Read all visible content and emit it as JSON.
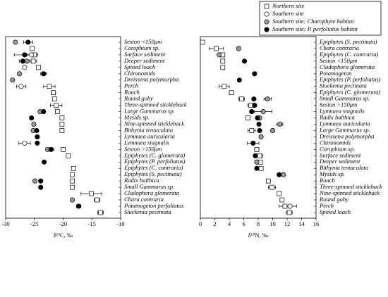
{
  "chart_data": [
    {
      "type": "dot",
      "xlabel": "δ¹³C, ‰",
      "xlim": [
        -30,
        -10
      ],
      "xticks": [
        -30,
        -25,
        -20,
        -15,
        -10
      ],
      "categories": [
        "Seston <150μm",
        "Corophium sp.",
        "Surface sediment",
        "Deeper sediment",
        "Spined loach",
        "Chironomids",
        "Dreissena polymorpha",
        "Perch",
        "Roach",
        "Round goby",
        "Three-spinned stickleback",
        "Large Gammarus sp.",
        "Mysids sp.",
        "Nine-spinned stickleback",
        "Bithynia tentaculata",
        "Lymnaea auricularia",
        "Lymnaea stagnalis",
        "Seston >150μm",
        "Epiphytes (C. glomerata)",
        "Epiphytes (P. perfoliatus)",
        "Epiphytes (C. contraria)",
        "Epiphytes (S. pectinata)",
        "Radix balthica",
        "Small Gammarus sp.",
        "Cladophora glomerata",
        "Chara contraria",
        "Potamogeton perfoliatus",
        "Stuckenia pectinata"
      ],
      "series": [
        {
          "name": "Northern site",
          "marker": "square",
          "color": "#ffffff",
          "values": [
            null,
            -25.4,
            -25.0,
            -25.2,
            -24.3,
            null,
            null,
            -22.4,
            -21.7,
            -21.5,
            -21.2,
            -21.0,
            -20.2,
            -20.2,
            -20.2,
            null,
            null,
            -20.0,
            -19.1,
            null,
            -18.2,
            -18.4,
            -18.4,
            -18.4,
            -15.1,
            -14.1,
            null,
            -13.5
          ],
          "errors": [
            null,
            null,
            0.6,
            0.6,
            null,
            null,
            null,
            1.0,
            0.4,
            null,
            1.0,
            null,
            null,
            null,
            null,
            null,
            null,
            null,
            null,
            null,
            null,
            null,
            null,
            null,
            1.8,
            0.5,
            null,
            0.5
          ]
        },
        {
          "name": "Southern site",
          "marker": "circle",
          "color": "#ffffff",
          "values": [
            null,
            null,
            -25.5,
            null,
            -26.7,
            null,
            null,
            -27.3,
            null,
            null,
            null,
            null,
            null,
            null,
            null,
            null,
            -26.7,
            null,
            null,
            null,
            null,
            null,
            null,
            null,
            null,
            null,
            null,
            null
          ],
          "errors": [
            null,
            null,
            0.6,
            null,
            null,
            null,
            null,
            0.8,
            null,
            null,
            null,
            null,
            null,
            null,
            null,
            null,
            1.0,
            null,
            null,
            null,
            null,
            null,
            null,
            null,
            null,
            null,
            null,
            null
          ]
        },
        {
          "name": "Southern site: Charophyte habitat",
          "marker": "circle",
          "color": "#999999",
          "values": [
            -28.3,
            null,
            null,
            -26.3,
            null,
            -27.6,
            -28.8,
            null,
            null,
            null,
            null,
            -24.0,
            null,
            -25.1,
            -25.2,
            null,
            null,
            -22.7,
            null,
            null,
            null,
            null,
            -24.9,
            null,
            null,
            -18.4,
            null,
            null
          ],
          "errors": [
            null,
            null,
            null,
            null,
            null,
            null,
            null,
            null,
            null,
            null,
            null,
            null,
            null,
            null,
            null,
            null,
            null,
            null,
            null,
            null,
            null,
            null,
            null,
            null,
            null,
            null,
            null,
            null
          ]
        },
        {
          "name": "Southern site: P. perfoliatus habitat",
          "marker": "circle",
          "color": "#000000",
          "values": [
            -26.1,
            null,
            -26.7,
            -27.0,
            null,
            -23.4,
            null,
            null,
            null,
            null,
            null,
            -23.4,
            -25.5,
            null,
            -24.6,
            -24.5,
            -24.5,
            -22.1,
            null,
            -23.3,
            null,
            null,
            -23.9,
            -23.9,
            null,
            null,
            -17.3,
            null
          ],
          "errors": [
            0.8,
            null,
            1.8,
            0.6,
            null,
            0.5,
            null,
            null,
            null,
            null,
            null,
            null,
            null,
            null,
            null,
            null,
            null,
            0.5,
            null,
            null,
            null,
            null,
            null,
            null,
            null,
            null,
            0.4,
            null
          ]
        }
      ]
    },
    {
      "type": "dot",
      "xlabel": "δ¹⁵N, ‰",
      "xlim": [
        0,
        16
      ],
      "xticks": [
        0,
        2,
        4,
        6,
        8,
        10,
        12,
        14,
        16
      ],
      "categories": [
        "Epiphytes (S. pectinata)",
        "Chara contraria",
        "Epiphytes (C. contraria)",
        "Seston <150μm",
        "Cladophora glomerata",
        "Potamogeton",
        "Epiphytes (P. perfoliatus)",
        "Stuckenia pectinata",
        "Epiphytes (C. glomerata)",
        "Small Gammarus sp.",
        "Seston >150μm",
        "Lymnaea stagnalis",
        "Radix balthica",
        "Lymnaea auricularia",
        "Large Gammarus sp.",
        "Dreissena polymorpha",
        "Chironomids",
        "Corophium sp.",
        "Surface sediment",
        "Deeper sediment",
        "Bithynia tentaculata",
        "Mysids sp.",
        "Roach",
        "Three-spinned stickleback",
        "Nine-spinned stickleback",
        "Round goby",
        "Perch",
        "Spined loach"
      ],
      "series": [
        {
          "name": "Northern site",
          "marker": "square",
          "color": "#ffffff",
          "values": [
            0.3,
            2.2,
            3.1,
            3.1,
            3.1,
            null,
            null,
            3.3,
            4.3,
            5.7,
            7.0,
            null,
            6.6,
            null,
            7.1,
            null,
            null,
            7.8,
            8.2,
            8.3,
            8.4,
            null,
            9.4,
            9.9,
            10.9,
            11.3,
            11.7,
            12.3
          ],
          "errors": [
            null,
            1.0,
            null,
            null,
            null,
            null,
            null,
            0.7,
            0.3,
            0.4,
            0.4,
            null,
            null,
            null,
            0.5,
            null,
            null,
            0.3,
            0.4,
            0.3,
            0.3,
            null,
            null,
            0.5,
            null,
            null,
            0.8,
            0.4
          ]
        },
        {
          "name": "Southern site",
          "marker": "circle",
          "color": "#ffffff",
          "values": [
            null,
            null,
            null,
            null,
            null,
            null,
            null,
            null,
            null,
            null,
            null,
            null,
            null,
            null,
            null,
            null,
            null,
            null,
            null,
            null,
            null,
            null,
            null,
            null,
            null,
            null,
            12.4,
            null
          ],
          "errors": [
            null,
            null,
            null,
            null,
            null,
            null,
            null,
            null,
            null,
            null,
            null,
            null,
            null,
            null,
            null,
            null,
            null,
            null,
            null,
            null,
            null,
            null,
            null,
            null,
            null,
            null,
            0.9,
            null
          ]
        },
        {
          "name": "Southern site: Charophyte habitat",
          "marker": "circle",
          "color": "#999999",
          "values": [
            null,
            5.3,
            2.6,
            null,
            null,
            null,
            null,
            null,
            null,
            9.3,
            null,
            8.7,
            8.2,
            11.0,
            10.0,
            8.4,
            null,
            null,
            null,
            7.8,
            null,
            11.5,
            null,
            null,
            null,
            null,
            null,
            null
          ],
          "errors": [
            null,
            null,
            null,
            null,
            null,
            null,
            null,
            null,
            null,
            0.5,
            null,
            1.2,
            null,
            0.4,
            null,
            null,
            null,
            null,
            null,
            null,
            null,
            null,
            null,
            null,
            null,
            null,
            null,
            null
          ]
        },
        {
          "name": "Southern site: P. perfoliatus habitat",
          "marker": "circle",
          "color": "#000000",
          "values": [
            null,
            null,
            null,
            6.1,
            null,
            7.5,
            5.4,
            null,
            null,
            7.4,
            7.5,
            7.1,
            7.9,
            8.1,
            8.2,
            null,
            7.3,
            null,
            7.6,
            null,
            7.8,
            10.9,
            null,
            null,
            null,
            null,
            null,
            null
          ],
          "errors": [
            null,
            null,
            null,
            0.2,
            null,
            0.2,
            null,
            null,
            null,
            null,
            null,
            null,
            null,
            null,
            null,
            null,
            0.8,
            null,
            null,
            null,
            null,
            null,
            null,
            null,
            null,
            null,
            null,
            null
          ]
        }
      ]
    }
  ]
}
